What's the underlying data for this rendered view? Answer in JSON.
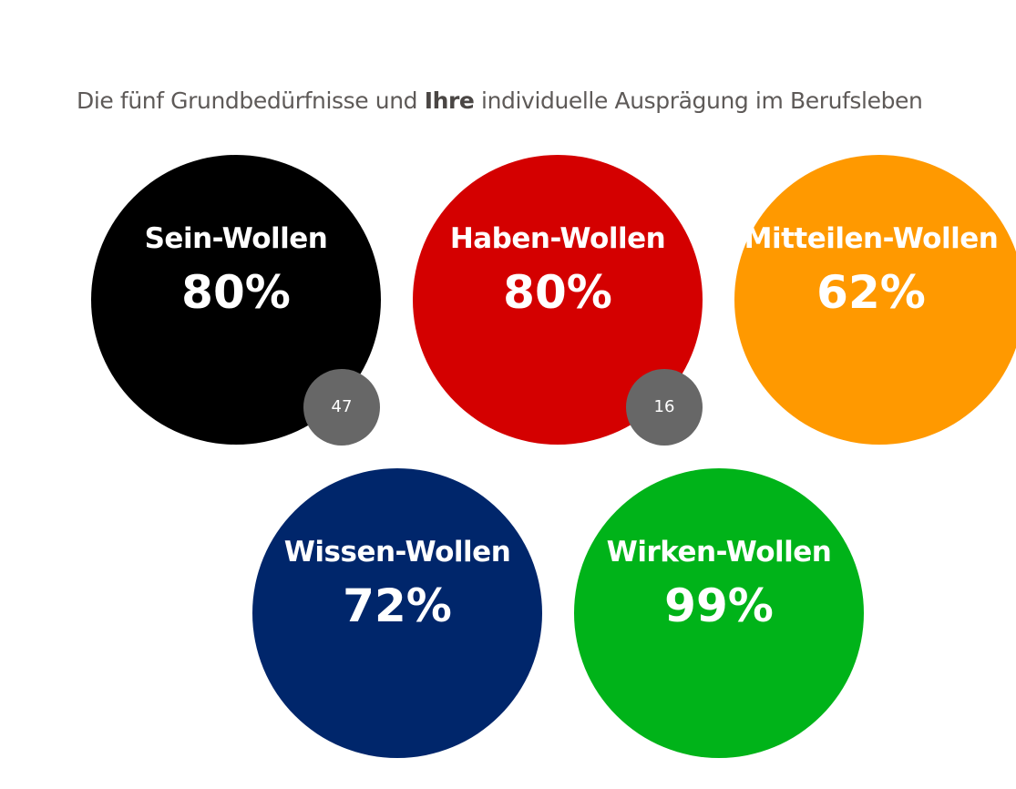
{
  "heading": {
    "prefix": "Die fünf Grundbedürfnisse und",
    "emphasis": "Ihre",
    "suffix": "individuelle Ausprägung im Berufsleben"
  },
  "needs": [
    {
      "name": "Sein-Wollen",
      "value": "80%",
      "color": "#000000",
      "badge": "47"
    },
    {
      "name": "Haben-Wollen",
      "value": "80%",
      "color": "#d40000",
      "badge": "16"
    },
    {
      "name": "Mitteilen-Wollen",
      "value": "62%",
      "color": "#ff9900"
    },
    {
      "name": "Wissen-Wollen",
      "value": "72%",
      "color": "#00266b"
    },
    {
      "name": "Wirken-Wollen",
      "value": "99%",
      "color": "#00b319"
    }
  ]
}
